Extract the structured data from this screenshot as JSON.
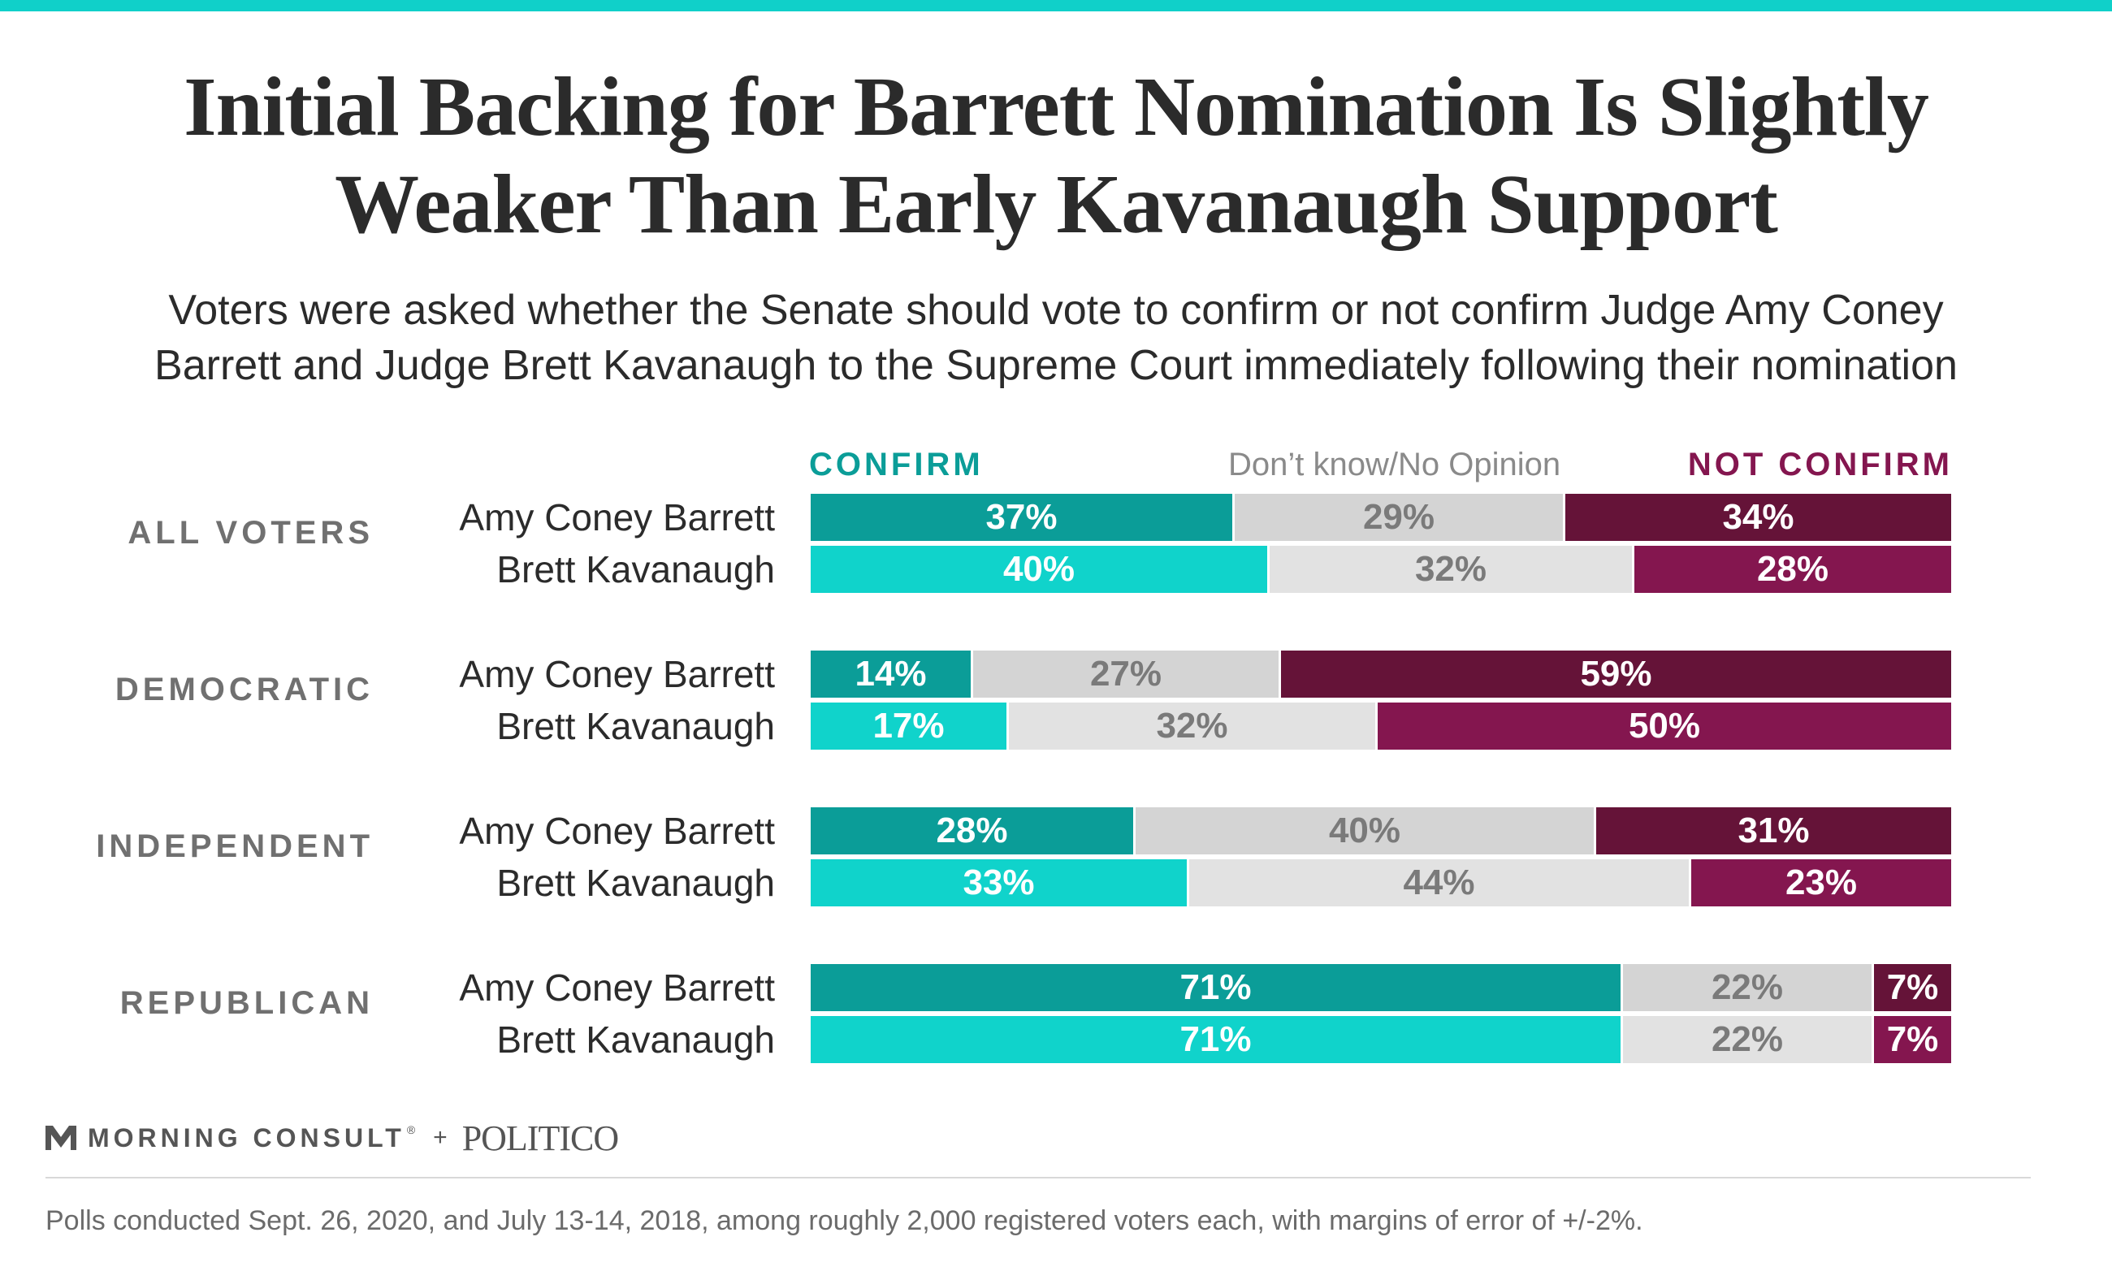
{
  "header": {
    "title_line1": "Initial Backing for Barrett Nomination Is Slightly",
    "title_line2": "Weaker Than Early Kavanaugh Support",
    "subtitle_line1": "Voters were asked whether the Senate should vote to confirm or not confirm Judge Amy Coney",
    "subtitle_line2": "Barrett and Judge Brett Kavanaugh to the Supreme Court immediately following their nomination"
  },
  "legend": {
    "confirm": "CONFIRM",
    "dont_know": "Don’t know/No Opinion",
    "not_confirm": "NOT CONFIRM"
  },
  "colors": {
    "accent_rule": "#10d0c9",
    "confirm_barrett": "#0b9d98",
    "confirm_kavanaugh": "#10d3cb",
    "dont_know_barrett": "#d4d4d4",
    "dont_know_kavanaugh": "#e2e2e2",
    "not_confirm_barrett": "#651338",
    "not_confirm_kavanaugh": "#84164f"
  },
  "chart_data": {
    "type": "bar",
    "orientation": "horizontal",
    "stacked": true,
    "unit": "%",
    "series": [
      {
        "name": "CONFIRM",
        "key": "confirm"
      },
      {
        "name": "Don’t know/No Opinion",
        "key": "dont_know"
      },
      {
        "name": "NOT CONFIRM",
        "key": "not_confirm"
      }
    ],
    "groups": [
      {
        "label": "ALL VOTERS",
        "rows": [
          {
            "label": "Amy Coney Barrett",
            "confirm": 37,
            "dont_know": 29,
            "not_confirm": 34
          },
          {
            "label": "Brett Kavanaugh",
            "confirm": 40,
            "dont_know": 32,
            "not_confirm": 28
          }
        ]
      },
      {
        "label": "DEMOCRATIC",
        "rows": [
          {
            "label": "Amy Coney Barrett",
            "confirm": 14,
            "dont_know": 27,
            "not_confirm": 59
          },
          {
            "label": "Brett Kavanaugh",
            "confirm": 17,
            "dont_know": 32,
            "not_confirm": 50
          }
        ]
      },
      {
        "label": "INDEPENDENT",
        "rows": [
          {
            "label": "Amy Coney Barrett",
            "confirm": 28,
            "dont_know": 40,
            "not_confirm": 31
          },
          {
            "label": "Brett Kavanaugh",
            "confirm": 33,
            "dont_know": 44,
            "not_confirm": 23
          }
        ]
      },
      {
        "label": "REPUBLICAN",
        "rows": [
          {
            "label": "Amy Coney Barrett",
            "confirm": 71,
            "dont_know": 22,
            "not_confirm": 7
          },
          {
            "label": "Brett Kavanaugh",
            "confirm": 71,
            "dont_know": 22,
            "not_confirm": 7
          }
        ]
      }
    ]
  },
  "footer": {
    "brand_icon": "morning-consult-m-icon",
    "brand1": "MORNING CONSULT",
    "registered_mark": "®",
    "plus": "+",
    "brand2": "POLITICO",
    "note": "Polls conducted Sept. 26, 2020, and July 13-14, 2018, among roughly 2,000 registered voters each, with margins of error of +/-2%."
  }
}
